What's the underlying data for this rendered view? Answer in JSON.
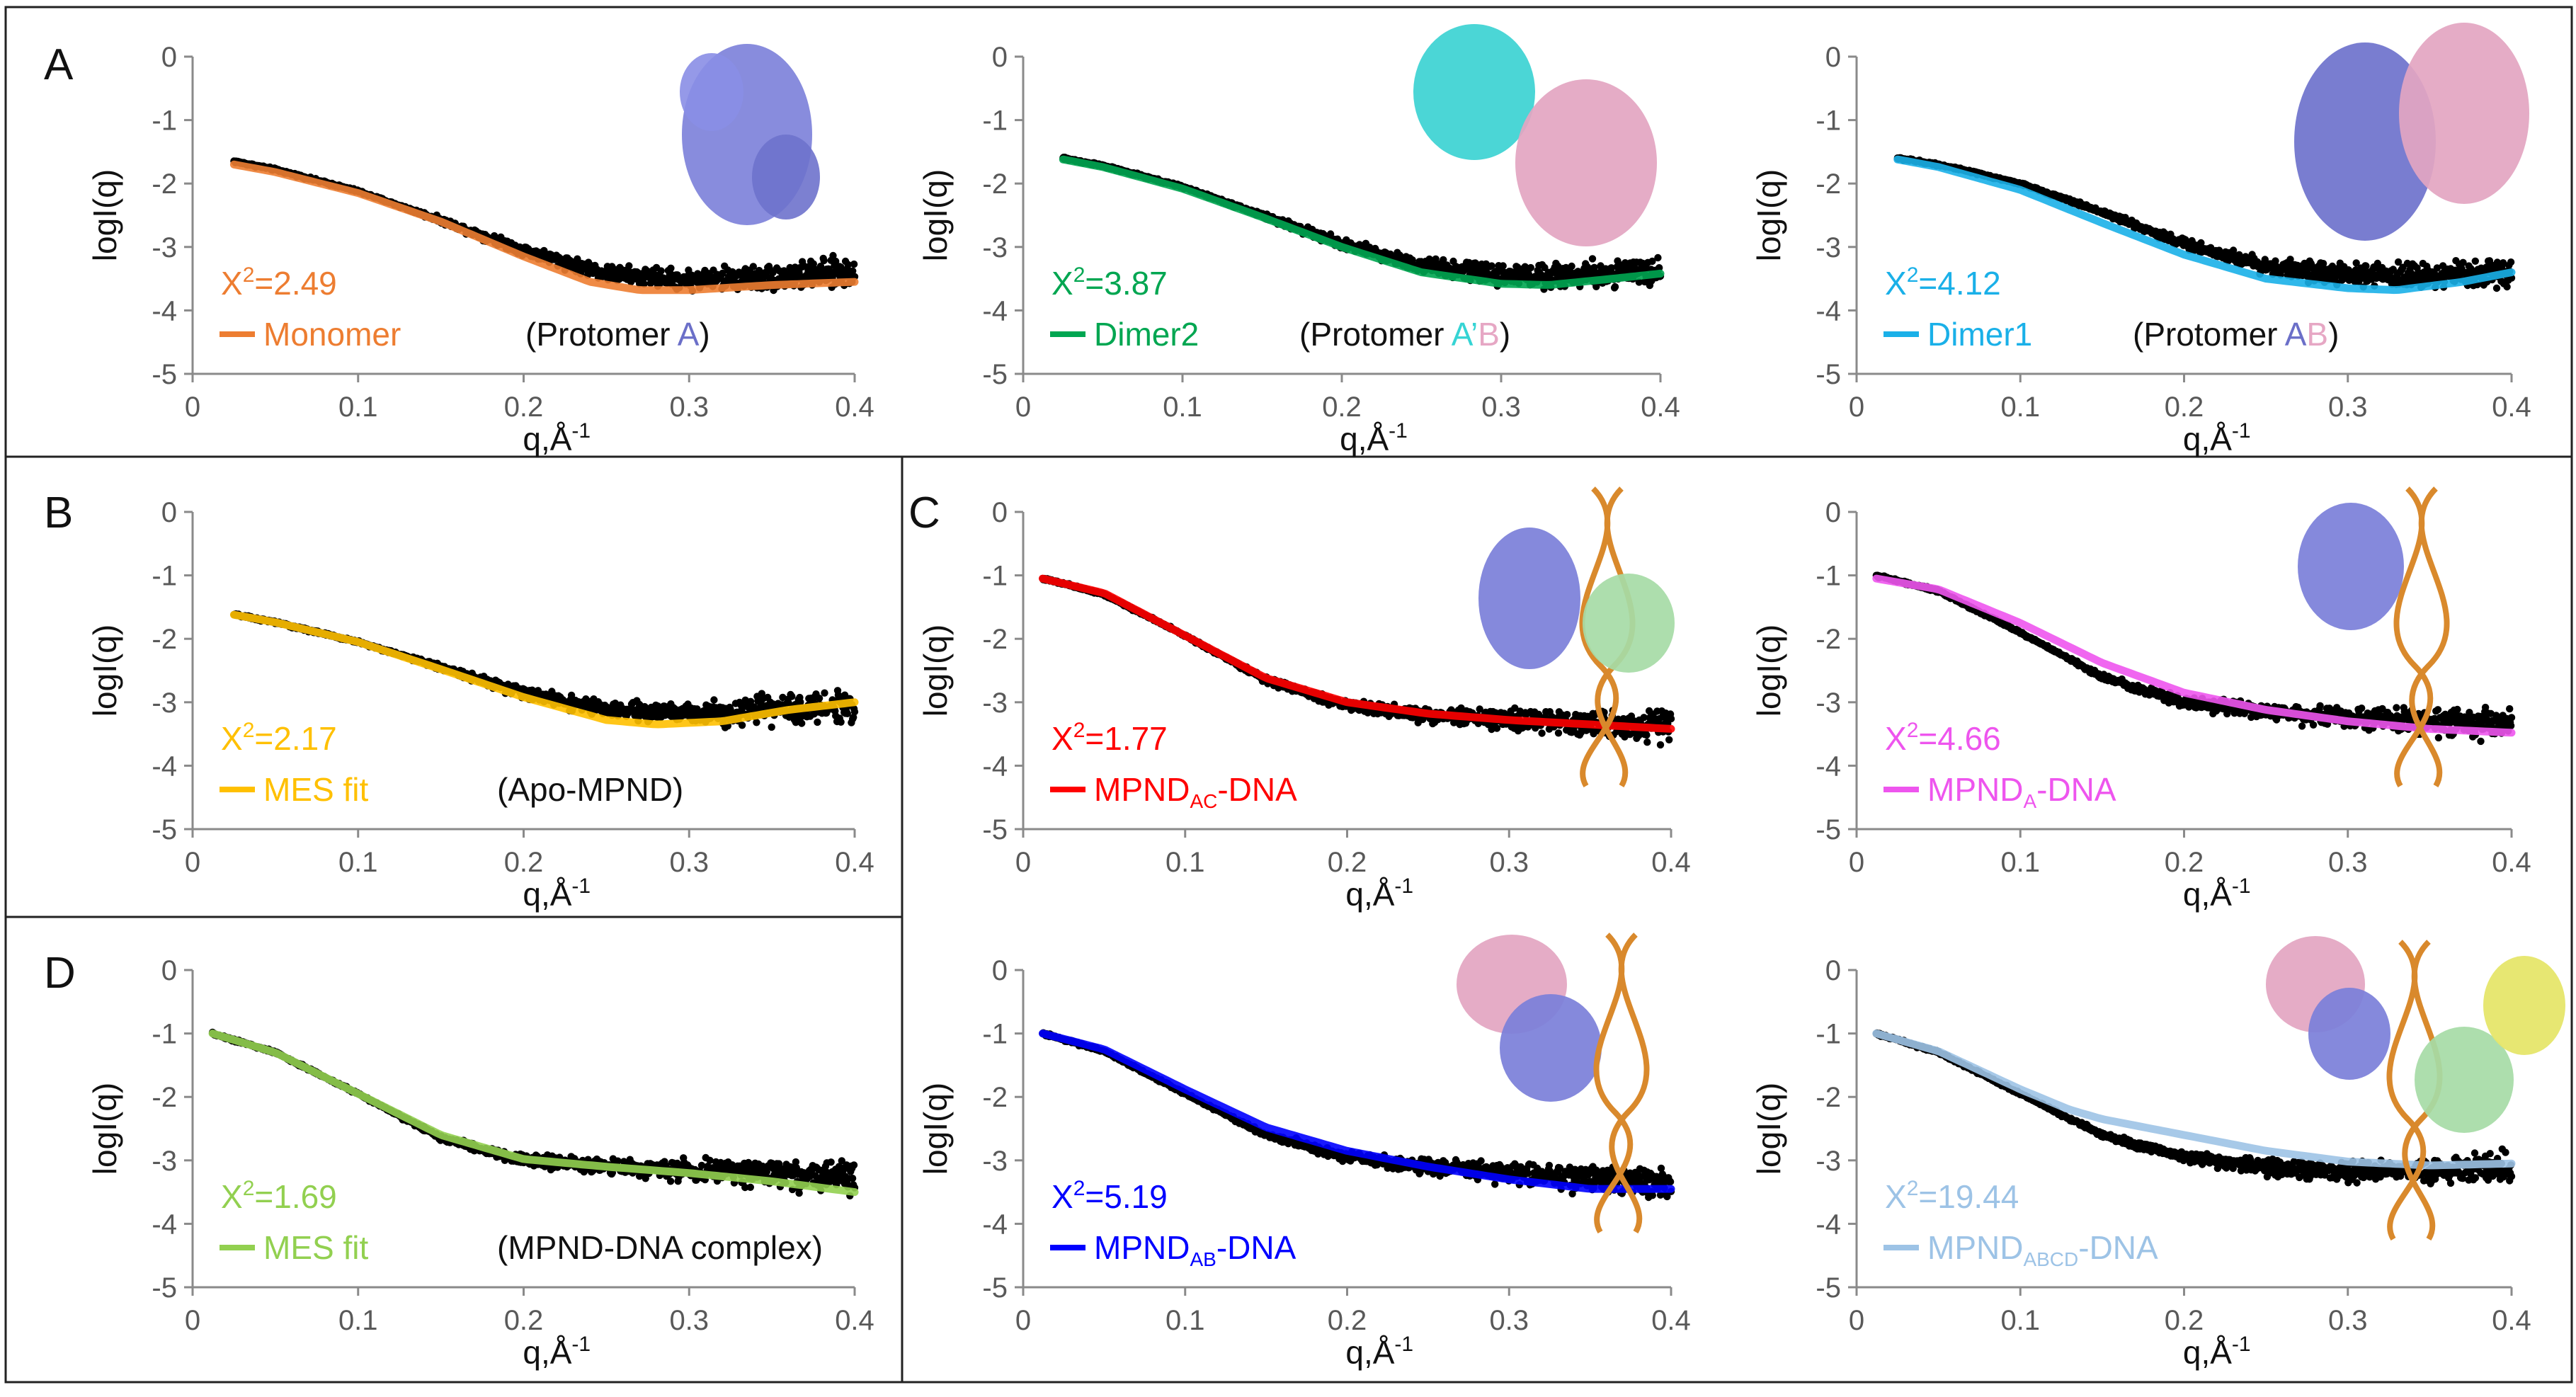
{
  "panel_labels": [
    "A",
    "B",
    "C",
    "D"
  ],
  "chart_data": [
    {
      "id": "A1",
      "type": "scatter",
      "panel": "A",
      "xlabel": "q,Å",
      "xlabel_sup": "-1",
      "ylabel": "logI(q)",
      "xlim": [
        0,
        0.4
      ],
      "ylim": [
        -5,
        0
      ],
      "xticks": [
        "0",
        "0.1",
        "0.2",
        "0.3",
        "0.4"
      ],
      "yticks": [
        "0",
        "-1",
        "-2",
        "-3",
        "-4",
        "-5"
      ],
      "chi_label": "X",
      "chi_sup": "2",
      "chi_value": "=2.49",
      "legend_label": "Monomer",
      "legend_sub": "",
      "note_prefix": "(Protomer ",
      "note_parts": [
        {
          "text": "A",
          "color": "#6b6fc8"
        }
      ],
      "note_suffix": ")",
      "fit_color": "#ed7d31",
      "series": [
        {
          "name": "experimental",
          "x": [
            0.025,
            0.05,
            0.1,
            0.15,
            0.2,
            0.25,
            0.3,
            0.35,
            0.4
          ],
          "y": [
            -1.65,
            -1.78,
            -2.12,
            -2.58,
            -3.05,
            -3.42,
            -3.52,
            -3.48,
            -3.4
          ]
        },
        {
          "name": "Monomer",
          "x": [
            0.025,
            0.05,
            0.1,
            0.15,
            0.2,
            0.24,
            0.27,
            0.3,
            0.35,
            0.4
          ],
          "y": [
            -1.7,
            -1.82,
            -2.15,
            -2.6,
            -3.15,
            -3.55,
            -3.68,
            -3.68,
            -3.6,
            -3.55
          ]
        }
      ]
    },
    {
      "id": "A2",
      "type": "scatter",
      "panel": "A",
      "xlabel": "q,Å",
      "xlabel_sup": "-1",
      "ylabel": "logI(q)",
      "xlim": [
        0,
        0.4
      ],
      "ylim": [
        -5,
        0
      ],
      "xticks": [
        "0",
        "0.1",
        "0.2",
        "0.3",
        "0.4"
      ],
      "yticks": [
        "0",
        "-1",
        "-2",
        "-3",
        "-4",
        "-5"
      ],
      "chi_label": "X",
      "chi_sup": "2",
      "chi_value": "=3.87",
      "legend_label": "Dimer2",
      "legend_sub": "",
      "note_prefix": "(Protomer ",
      "note_parts": [
        {
          "text": "A’",
          "color": "#35d4d4"
        },
        {
          "text": "B",
          "color": "#e6a7c4"
        }
      ],
      "note_suffix": ")",
      "fit_color": "#00a651",
      "series": [
        {
          "name": "experimental",
          "x": [
            0.025,
            0.05,
            0.1,
            0.15,
            0.2,
            0.25,
            0.3,
            0.35,
            0.4
          ],
          "y": [
            -1.6,
            -1.72,
            -2.05,
            -2.5,
            -2.95,
            -3.3,
            -3.45,
            -3.45,
            -3.38
          ]
        },
        {
          "name": "Dimer2",
          "x": [
            0.025,
            0.05,
            0.1,
            0.15,
            0.2,
            0.25,
            0.3,
            0.33,
            0.37,
            0.4
          ],
          "y": [
            -1.62,
            -1.74,
            -2.08,
            -2.53,
            -3.0,
            -3.4,
            -3.58,
            -3.6,
            -3.5,
            -3.42
          ]
        }
      ]
    },
    {
      "id": "A3",
      "type": "scatter",
      "panel": "A",
      "xlabel": "q,Å",
      "xlabel_sup": "-1",
      "ylabel": "logI(q)",
      "xlim": [
        0,
        0.4
      ],
      "ylim": [
        -5,
        0
      ],
      "xticks": [
        "0",
        "0.1",
        "0.2",
        "0.3",
        "0.4"
      ],
      "yticks": [
        "0",
        "-1",
        "-2",
        "-3",
        "-4",
        "-5"
      ],
      "chi_label": "X",
      "chi_sup": "2",
      "chi_value": "=4.12",
      "legend_label": "Dimer1",
      "legend_sub": "",
      "note_prefix": "(Protomer ",
      "note_parts": [
        {
          "text": "A",
          "color": "#6b6fc8"
        },
        {
          "text": "B",
          "color": "#e6a7c4"
        }
      ],
      "note_suffix": ")",
      "fit_color": "#1ab0e8",
      "series": [
        {
          "name": "experimental",
          "x": [
            0.025,
            0.05,
            0.1,
            0.15,
            0.2,
            0.25,
            0.3,
            0.35,
            0.4
          ],
          "y": [
            -1.6,
            -1.7,
            -2.0,
            -2.45,
            -2.95,
            -3.3,
            -3.45,
            -3.45,
            -3.4
          ]
        },
        {
          "name": "Dimer1",
          "x": [
            0.025,
            0.05,
            0.1,
            0.15,
            0.2,
            0.25,
            0.3,
            0.33,
            0.37,
            0.4
          ],
          "y": [
            -1.62,
            -1.74,
            -2.1,
            -2.62,
            -3.12,
            -3.5,
            -3.65,
            -3.68,
            -3.55,
            -3.4
          ]
        }
      ]
    },
    {
      "id": "B",
      "type": "scatter",
      "panel": "B",
      "xlabel": "q,Å",
      "xlabel_sup": "-1",
      "ylabel": "logI(q)",
      "xlim": [
        0,
        0.4
      ],
      "ylim": [
        -5,
        0
      ],
      "xticks": [
        "0",
        "0.1",
        "0.2",
        "0.3",
        "0.4"
      ],
      "yticks": [
        "0",
        "-1",
        "-2",
        "-3",
        "-4",
        "-5"
      ],
      "chi_label": "X",
      "chi_sup": "2",
      "chi_value": "=2.17",
      "legend_label": "MES fit",
      "legend_sub": "",
      "note_prefix": "(Apo-MPND)",
      "note_parts": [],
      "note_suffix": "",
      "fit_color": "#ffc000",
      "series": [
        {
          "name": "experimental",
          "x": [
            0.025,
            0.05,
            0.1,
            0.15,
            0.2,
            0.25,
            0.3,
            0.35,
            0.4
          ],
          "y": [
            -1.62,
            -1.74,
            -2.05,
            -2.45,
            -2.85,
            -3.12,
            -3.18,
            -3.12,
            -3.05
          ]
        },
        {
          "name": "MES fit",
          "x": [
            0.025,
            0.05,
            0.1,
            0.15,
            0.2,
            0.25,
            0.28,
            0.32,
            0.36,
            0.4
          ],
          "y": [
            -1.62,
            -1.74,
            -2.05,
            -2.48,
            -2.92,
            -3.28,
            -3.35,
            -3.3,
            -3.12,
            -3.0
          ]
        }
      ]
    },
    {
      "id": "C1",
      "type": "scatter",
      "panel": "C",
      "xlabel": "q,Å",
      "xlabel_sup": "-1",
      "ylabel": "logI(q)",
      "xlim": [
        0,
        0.4
      ],
      "ylim": [
        -5,
        0
      ],
      "xticks": [
        "0",
        "0.1",
        "0.2",
        "0.3",
        "0.4"
      ],
      "yticks": [
        "0",
        "-1",
        "-2",
        "-3",
        "-4",
        "-5"
      ],
      "chi_label": "X",
      "chi_sup": "2",
      "chi_value": "=1.77",
      "legend_label": "MPND",
      "legend_sub": "AC",
      "legend_suffix": "-DNA",
      "note_prefix": "",
      "note_parts": [],
      "note_suffix": "",
      "fit_color": "#ff0000",
      "series": [
        {
          "name": "experimental",
          "x": [
            0.012,
            0.05,
            0.1,
            0.15,
            0.2,
            0.25,
            0.3,
            0.35,
            0.4
          ],
          "y": [
            -1.05,
            -1.3,
            -1.95,
            -2.65,
            -3.05,
            -3.2,
            -3.28,
            -3.33,
            -3.38
          ]
        },
        {
          "name": "MPND_AC-DNA",
          "x": [
            0.012,
            0.05,
            0.1,
            0.15,
            0.2,
            0.25,
            0.3,
            0.35,
            0.4
          ],
          "y": [
            -1.05,
            -1.28,
            -1.95,
            -2.62,
            -3.0,
            -3.18,
            -3.28,
            -3.35,
            -3.42
          ]
        }
      ]
    },
    {
      "id": "C2",
      "type": "scatter",
      "panel": "C",
      "xlabel": "q,Å",
      "xlabel_sup": "-1",
      "ylabel": "logI(q)",
      "xlim": [
        0,
        0.4
      ],
      "ylim": [
        -5,
        0
      ],
      "xticks": [
        "0",
        "0.1",
        "0.2",
        "0.3",
        "0.4"
      ],
      "yticks": [
        "0",
        "-1",
        "-2",
        "-3",
        "-4",
        "-5"
      ],
      "chi_label": "X",
      "chi_sup": "2",
      "chi_value": "=4.66",
      "legend_label": "MPND",
      "legend_sub": "A",
      "legend_suffix": "-DNA",
      "note_prefix": "",
      "note_parts": [],
      "note_suffix": "",
      "fit_color": "#ee55ee",
      "series": [
        {
          "name": "experimental",
          "x": [
            0.012,
            0.05,
            0.1,
            0.15,
            0.2,
            0.25,
            0.3,
            0.35,
            0.4
          ],
          "y": [
            -1.0,
            -1.25,
            -1.9,
            -2.6,
            -3.0,
            -3.15,
            -3.25,
            -3.3,
            -3.35
          ]
        },
        {
          "name": "MPND_A-DNA",
          "x": [
            0.012,
            0.05,
            0.1,
            0.15,
            0.2,
            0.25,
            0.3,
            0.35,
            0.4
          ],
          "y": [
            -1.05,
            -1.22,
            -1.75,
            -2.38,
            -2.85,
            -3.12,
            -3.3,
            -3.42,
            -3.48
          ]
        }
      ]
    },
    {
      "id": "D",
      "type": "scatter",
      "panel": "D",
      "xlabel": "q,Å",
      "xlabel_sup": "-1",
      "ylabel": "logI(q)",
      "xlim": [
        0,
        0.4
      ],
      "ylim": [
        -5,
        0
      ],
      "xticks": [
        "0",
        "0.1",
        "0.2",
        "0.3",
        "0.4"
      ],
      "yticks": [
        "0",
        "-1",
        "-2",
        "-3",
        "-4",
        "-5"
      ],
      "chi_label": "X",
      "chi_sup": "2",
      "chi_value": "=1.69",
      "legend_label": "MES fit",
      "legend_sub": "",
      "note_prefix": "(MPND-DNA complex)",
      "note_parts": [],
      "note_suffix": "",
      "fit_color": "#92d050",
      "series": [
        {
          "name": "experimental",
          "x": [
            0.012,
            0.05,
            0.1,
            0.15,
            0.2,
            0.25,
            0.3,
            0.35,
            0.4
          ],
          "y": [
            -1.0,
            -1.3,
            -1.95,
            -2.65,
            -3.0,
            -3.1,
            -3.15,
            -3.2,
            -3.3
          ]
        },
        {
          "name": "MES fit",
          "x": [
            0.012,
            0.05,
            0.1,
            0.15,
            0.2,
            0.25,
            0.3,
            0.35,
            0.4
          ],
          "y": [
            -1.0,
            -1.3,
            -1.95,
            -2.6,
            -2.98,
            -3.1,
            -3.2,
            -3.33,
            -3.5
          ]
        }
      ]
    },
    {
      "id": "C3",
      "type": "scatter",
      "panel": "C",
      "xlabel": "q,Å",
      "xlabel_sup": "-1",
      "ylabel": "logI(q)",
      "xlim": [
        0,
        0.4
      ],
      "ylim": [
        -5,
        0
      ],
      "xticks": [
        "0",
        "0.1",
        "0.2",
        "0.3",
        "0.4"
      ],
      "yticks": [
        "0",
        "-1",
        "-2",
        "-3",
        "-4",
        "-5"
      ],
      "chi_label": "X",
      "chi_sup": "2",
      "chi_value": "=5.19",
      "legend_label": "MPND",
      "legend_sub": "AB",
      "legend_suffix": "-DNA",
      "note_prefix": "",
      "note_parts": [],
      "note_suffix": "",
      "fit_color": "#0000ff",
      "series": [
        {
          "name": "experimental",
          "x": [
            0.012,
            0.05,
            0.1,
            0.15,
            0.2,
            0.25,
            0.3,
            0.35,
            0.4
          ],
          "y": [
            -1.0,
            -1.28,
            -1.95,
            -2.6,
            -2.95,
            -3.1,
            -3.2,
            -3.28,
            -3.35
          ]
        },
        {
          "name": "MPND_AB-DNA",
          "x": [
            0.012,
            0.05,
            0.1,
            0.15,
            0.2,
            0.25,
            0.3,
            0.35,
            0.4
          ],
          "y": [
            -1.0,
            -1.25,
            -1.88,
            -2.48,
            -2.85,
            -3.1,
            -3.3,
            -3.45,
            -3.45
          ]
        }
      ]
    },
    {
      "id": "C4",
      "type": "scatter",
      "panel": "C",
      "xlabel": "q,Å",
      "xlabel_sup": "-1",
      "ylabel": "logI(q)",
      "xlim": [
        0,
        0.4
      ],
      "ylim": [
        -5,
        0
      ],
      "xticks": [
        "0",
        "0.1",
        "0.2",
        "0.3",
        "0.4"
      ],
      "yticks": [
        "0",
        "-1",
        "-2",
        "-3",
        "-4",
        "-5"
      ],
      "chi_label": "X",
      "chi_sup": "2",
      "chi_value": "=19.44",
      "legend_label": "MPND",
      "legend_sub": "ABCD",
      "legend_suffix": "-DNA",
      "note_prefix": "",
      "note_parts": [],
      "note_suffix": "",
      "fit_color": "#9dc3e6",
      "series": [
        {
          "name": "experimental",
          "x": [
            0.012,
            0.05,
            0.1,
            0.15,
            0.2,
            0.25,
            0.3,
            0.35,
            0.4
          ],
          "y": [
            -1.0,
            -1.3,
            -1.95,
            -2.6,
            -2.95,
            -3.1,
            -3.2,
            -3.18,
            -3.1
          ]
        },
        {
          "name": "MPND_ABCD-DNA",
          "x": [
            0.012,
            0.05,
            0.1,
            0.13,
            0.15,
            0.2,
            0.25,
            0.3,
            0.35,
            0.4
          ],
          "y": [
            -1.0,
            -1.28,
            -1.88,
            -2.2,
            -2.35,
            -2.6,
            -2.85,
            -3.02,
            -3.08,
            -3.05
          ]
        }
      ]
    }
  ]
}
